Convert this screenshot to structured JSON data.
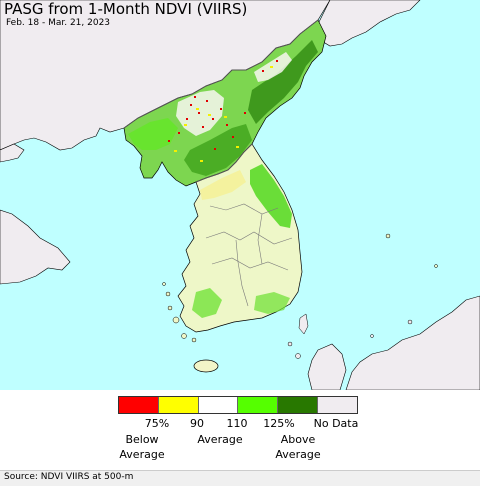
{
  "map": {
    "title": "PASG from 1-Month NDVI (VIIRS)",
    "subtitle": "Feb. 18 - Mar. 21, 2023",
    "colors": {
      "sea": "#bfffff",
      "foreign_land": "#f0ecf0",
      "border": "#6a6a6a",
      "coast": "#000000"
    }
  },
  "legend": {
    "swatches": [
      {
        "color": "#ff0000"
      },
      {
        "color": "#ffff00"
      },
      {
        "color": "#ffffff"
      },
      {
        "color": "#55ff00"
      },
      {
        "color": "#287800"
      },
      {
        "color": "#f0ecf0"
      }
    ],
    "ticks": [
      "75%",
      "90",
      "110",
      "125%"
    ],
    "no_data": "No Data",
    "below": "Below\nAverage",
    "average": "Average",
    "above": "Above\nAverage"
  },
  "source": "Source: NDVI VIIRS at 500-m"
}
